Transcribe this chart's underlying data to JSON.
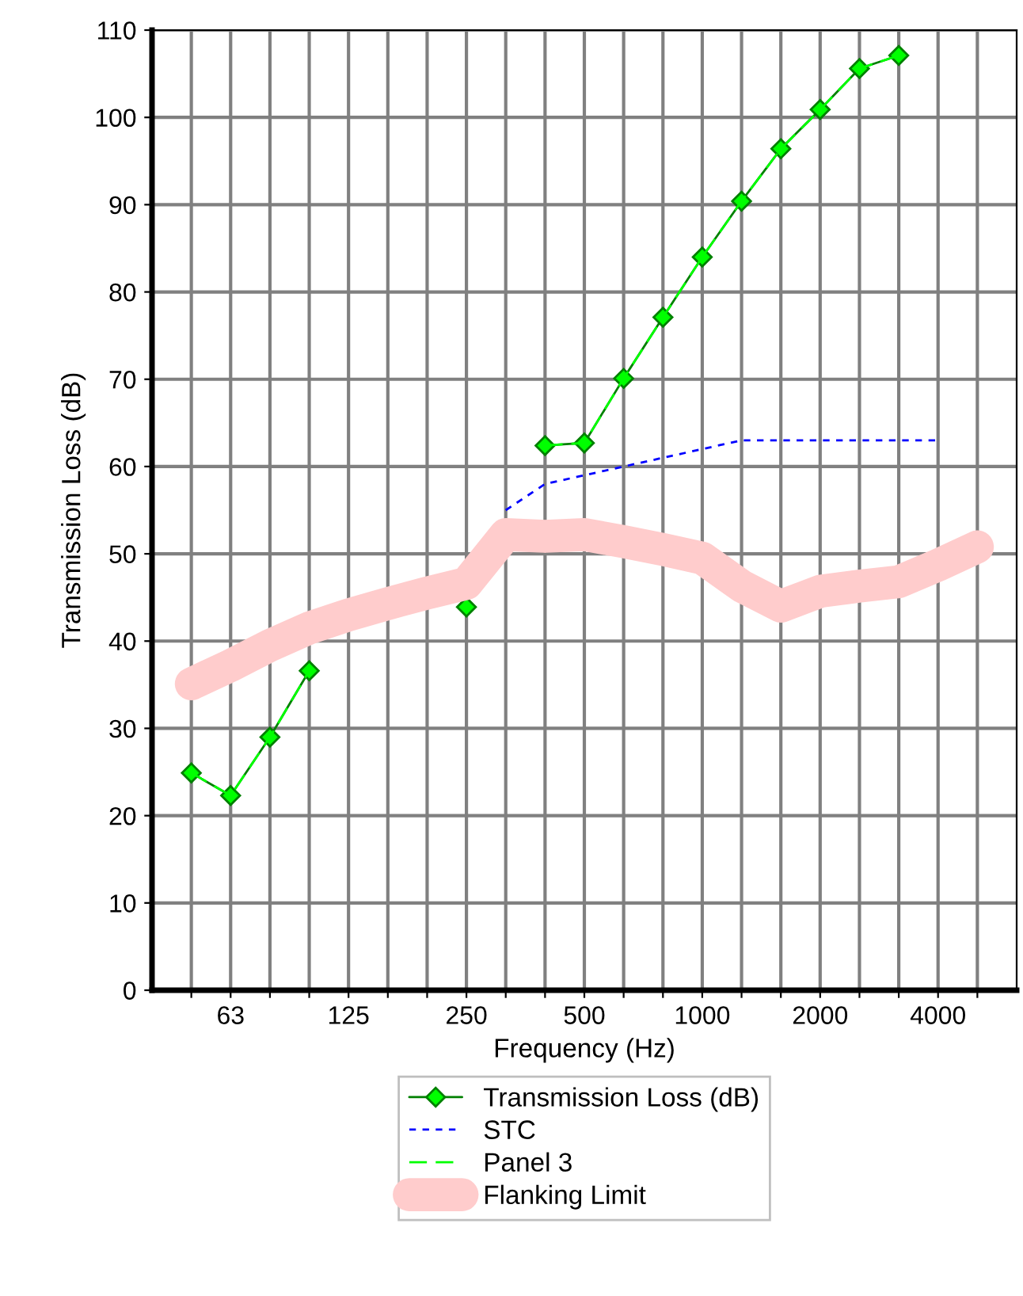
{
  "chart_data": {
    "type": "line",
    "xlabel": "Frequency (Hz)",
    "ylabel": "Transmission Loss (dB)",
    "categories": [
      null,
      "63",
      null,
      null,
      "125",
      null,
      null,
      "250",
      null,
      null,
      "500",
      null,
      null,
      "1000",
      null,
      null,
      "2000",
      null,
      null,
      "4000",
      null
    ],
    "ylim": [
      0,
      110
    ],
    "yticks": [
      0,
      10,
      20,
      30,
      40,
      50,
      60,
      70,
      80,
      90,
      100,
      110
    ],
    "grid": true,
    "legend": "bottom",
    "series": [
      {
        "name": "Transmission Loss (dB)",
        "color": "#008000",
        "line_style": "solid",
        "marker": "diamond",
        "values": [
          24.9,
          22.3,
          29.0,
          36.6,
          null,
          null,
          null,
          43.9,
          null,
          62.4,
          62.7,
          70.1,
          77.1,
          84.0,
          90.4,
          96.4,
          100.9,
          105.6,
          107.1,
          null,
          null
        ]
      },
      {
        "name": "STC",
        "color": "#0000ff",
        "line_style": "dotted",
        "marker": "none",
        "values": [
          null,
          null,
          null,
          null,
          null,
          null,
          null,
          null,
          55,
          58,
          59,
          60,
          61,
          62,
          63,
          63,
          63,
          63,
          63,
          63,
          null
        ]
      },
      {
        "name": "Panel 3",
        "color": "#00ff00",
        "line_style": "dashed",
        "marker": "none",
        "values": [
          24.9,
          22.3,
          29.0,
          36.6,
          null,
          null,
          null,
          null,
          null,
          62.4,
          62.7,
          70.1,
          77.1,
          84.0,
          90.4,
          96.4,
          100.9,
          105.6,
          107.1,
          null,
          null
        ]
      },
      {
        "name": "Flanking Limit",
        "color": "#ffcccc",
        "line_style": "solid",
        "marker": "none",
        "values": [
          35.1,
          37.2,
          39.5,
          41.5,
          43.0,
          44.3,
          45.5,
          46.6,
          52.2,
          52.0,
          52.2,
          51.4,
          50.5,
          49.5,
          46.3,
          44.0,
          45.7,
          46.3,
          46.8,
          48.7,
          50.8
        ]
      }
    ]
  }
}
